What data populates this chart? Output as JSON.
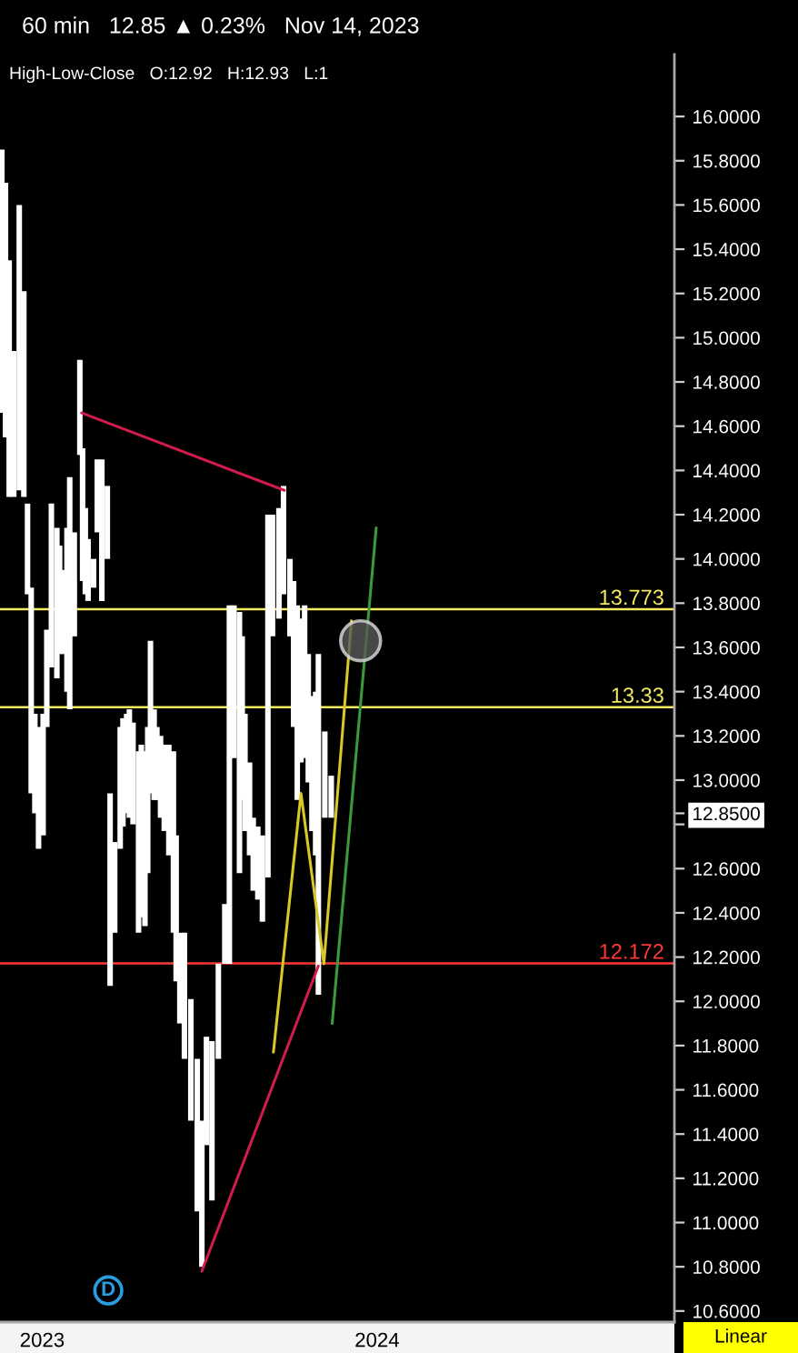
{
  "chart_data": {
    "type": "bar",
    "title": "60 min   12.85 ▲ 0.23%   Nov 14, 2023",
    "subtitle": "High-Low-Close   O:12.92   H:12.93   L:1",
    "xlim": [
      "2022-11-16",
      "2024-11-20"
    ],
    "xticks": [
      {
        "value": "2023-01-01",
        "label": "2023"
      },
      {
        "value": "2024-01-01",
        "label": "2024"
      }
    ],
    "ylim": [
      10.55,
      16.28
    ],
    "yticks": [
      {
        "value": 10.6,
        "label": "10.6000"
      },
      {
        "value": 10.8,
        "label": "10.8000"
      },
      {
        "value": 11.0,
        "label": "11.0000"
      },
      {
        "value": 11.2,
        "label": "11.2000"
      },
      {
        "value": 11.4,
        "label": "11.4000"
      },
      {
        "value": 11.6,
        "label": "11.6000"
      },
      {
        "value": 11.8,
        "label": "11.8000"
      },
      {
        "value": 12.0,
        "label": "12.0000"
      },
      {
        "value": 12.2,
        "label": "12.2000"
      },
      {
        "value": 12.4,
        "label": "12.4000"
      },
      {
        "value": 12.6,
        "label": "12.6000"
      },
      {
        "value": 12.8,
        "label": null
      },
      {
        "value": 12.85,
        "label": "12.8500"
      },
      {
        "value": 13.0,
        "label": "13.0000"
      },
      {
        "value": 13.2,
        "label": "13.2000"
      },
      {
        "value": 13.4,
        "label": "13.4000"
      },
      {
        "value": 13.6,
        "label": "13.6000"
      },
      {
        "value": 13.8,
        "label": "13.8000"
      },
      {
        "value": 14.0,
        "label": "14.0000"
      },
      {
        "value": 14.2,
        "label": "14.2000"
      },
      {
        "value": 14.4,
        "label": "14.4000"
      },
      {
        "value": 14.6,
        "label": "14.6000"
      },
      {
        "value": 14.8,
        "label": "14.8000"
      },
      {
        "value": 15.0,
        "label": "15.0000"
      },
      {
        "value": 15.2,
        "label": "15.2000"
      },
      {
        "value": 15.4,
        "label": "15.4000"
      },
      {
        "value": 15.6,
        "label": "15.6000"
      },
      {
        "value": 15.8,
        "label": "15.8000"
      },
      {
        "value": 16.0,
        "label": "16.0000"
      }
    ],
    "series": [
      {
        "color": "#ffffff",
        "x": [
          "2022-11-18",
          "2022-11-22",
          "2022-11-26",
          "2022-12-01",
          "2022-12-07",
          "2022-12-12",
          "2022-12-16",
          "2022-12-20",
          "2022-12-24",
          "2022-12-28",
          "2023-01-02",
          "2023-01-06",
          "2023-01-11",
          "2023-01-17",
          "2023-01-20",
          "2023-01-24",
          "2023-01-28",
          "2023-01-31",
          "2023-02-05",
          "2023-02-11",
          "2023-02-14",
          "2023-02-17",
          "2023-02-20",
          "2023-02-26",
          "2023-03-02",
          "2023-03-07",
          "2023-03-13",
          "2023-03-16",
          "2023-03-21",
          "2023-03-27",
          "2023-03-30",
          "2023-04-03",
          "2023-04-06",
          "2023-04-10",
          "2023-04-16",
          "2023-04-19",
          "2023-04-23",
          "2023-04-26",
          "2023-04-29",
          "2023-05-03",
          "2023-05-06",
          "2023-05-10",
          "2023-05-14",
          "2023-05-19",
          "2023-05-24",
          "2023-05-27",
          "2023-05-31",
          "2023-06-05",
          "2023-06-12",
          "2023-06-19",
          "2023-06-24",
          "2023-06-29",
          "2023-07-05",
          "2023-07-12",
          "2023-07-19",
          "2023-07-24",
          "2023-07-29",
          "2023-08-04",
          "2023-08-07",
          "2023-08-10",
          "2023-08-15",
          "2023-08-19",
          "2023-08-24",
          "2023-08-29",
          "2023-09-04",
          "2023-09-09",
          "2023-09-16",
          "2023-09-21",
          "2023-09-28",
          "2023-10-02",
          "2023-10-06",
          "2023-10-10",
          "2023-10-14",
          "2023-10-18",
          "2023-10-22",
          "2023-10-26",
          "2023-10-29",
          "2023-11-05",
          "2023-11-12"
        ],
        "base": [
          14.66,
          14.55,
          14.28,
          14.28,
          14.31,
          14.28,
          13.84,
          12.94,
          12.85,
          12.69,
          12.75,
          13.24,
          13.51,
          13.46,
          13.57,
          13.57,
          13.4,
          13.32,
          13.65,
          14.47,
          13.9,
          13.84,
          13.81,
          13.87,
          14.12,
          13.81,
          14.0,
          12.07,
          12.31,
          12.69,
          12.79,
          12.85,
          12.83,
          12.8,
          12.31,
          12.38,
          12.34,
          12.58,
          12.94,
          12.91,
          12.91,
          12.83,
          12.77,
          12.66,
          12.31,
          12.09,
          11.9,
          11.74,
          11.46,
          11.05,
          10.8,
          11.35,
          11.1,
          11.74,
          12.17,
          12.17,
          13.1,
          12.58,
          12.91,
          12.77,
          12.66,
          12.5,
          12.46,
          12.36,
          12.56,
          13.65,
          13.73,
          13.84,
          13.65,
          13.24,
          12.91,
          13.08,
          13.1,
          12.99,
          12.77,
          12.66,
          12.03,
          12.83,
          12.83
        ],
        "values": [
          1.19,
          1.15,
          1.07,
          0.66,
          1.29,
          0.93,
          0.41,
          0.93,
          0.45,
          0.55,
          0.55,
          0.44,
          0.74,
          0.68,
          0.49,
          0.38,
          0.74,
          1.05,
          0.47,
          0.43,
          0.6,
          0.39,
          0.28,
          0.13,
          0.33,
          0.64,
          0.33,
          0.87,
          0.41,
          0.55,
          0.49,
          0.45,
          0.49,
          0.46,
          0.82,
          0.78,
          0.79,
          0.66,
          0.69,
          0.41,
          0.33,
          0.37,
          0.39,
          0.5,
          0.82,
          0.66,
          0.41,
          0.57,
          0.55,
          0.69,
          0.66,
          0.49,
          0.72,
          0.43,
          0.27,
          1.62,
          0.69,
          1.18,
          0.74,
          0.53,
          0.42,
          0.33,
          0.33,
          0.39,
          1.64,
          0.55,
          0.5,
          0.49,
          0.35,
          0.66,
          0.88,
          0.65,
          0.69,
          0.58,
          0.61,
          0.74,
          1.54,
          0.39,
          0.19
        ]
      },
      {
        "type": "line",
        "color": "#d01c4c",
        "x": [
          "2023-02-13",
          "2023-09-22"
        ],
        "values": [
          14.66,
          14.31
        ]
      },
      {
        "type": "line",
        "color": "#d01c4c",
        "x": [
          "2023-06-24",
          "2023-10-29"
        ],
        "values": [
          10.78,
          12.16
        ]
      },
      {
        "type": "line",
        "color": "#d8c828",
        "x": [
          "2023-09-10",
          "2023-10-10",
          "2023-11-04",
          "2023-12-04"
        ],
        "values": [
          11.77,
          12.94,
          12.17,
          13.72
        ]
      },
      {
        "type": "line",
        "color": "#3c9a3c",
        "x": [
          "2023-11-13",
          "2023-12-31"
        ],
        "values": [
          11.9,
          14.14
        ]
      },
      {
        "type": "scatter",
        "marker": "circle",
        "color": "#5a5a5a",
        "x": [
          "2023-12-14"
        ],
        "values": [
          13.63
        ]
      }
    ],
    "ref_lines": [
      {
        "axis": "y",
        "value": 13.773,
        "label": "13.773",
        "color": "#f4ec60"
      },
      {
        "axis": "y",
        "value": 13.33,
        "label": "13.33",
        "color": "#f4ec60"
      },
      {
        "axis": "y",
        "value": 12.172,
        "label": "12.172",
        "color": "#ff3838"
      }
    ],
    "annotations": [
      {
        "text": "D",
        "x": "2023-03-14"
      },
      "Linear"
    ]
  }
}
